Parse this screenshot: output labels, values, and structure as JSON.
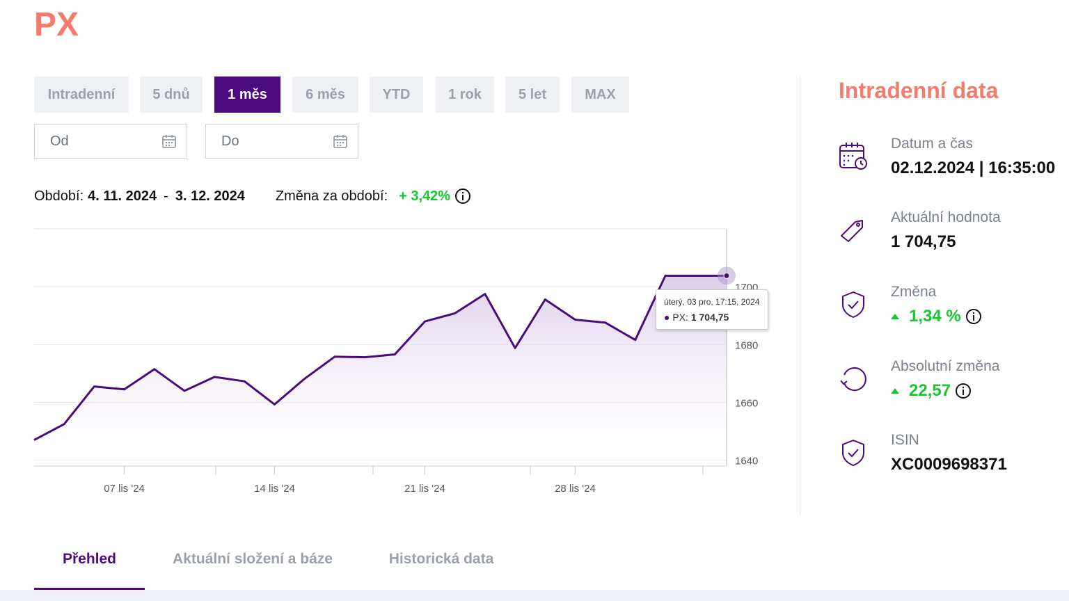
{
  "title": "PX",
  "periods": [
    {
      "label": "Intradenní",
      "active": false
    },
    {
      "label": "5 dnů",
      "active": false
    },
    {
      "label": "1 měs",
      "active": true
    },
    {
      "label": "6 měs",
      "active": false
    },
    {
      "label": "YTD",
      "active": false
    },
    {
      "label": "1 rok",
      "active": false
    },
    {
      "label": "5 let",
      "active": false
    },
    {
      "label": "MAX",
      "active": false
    }
  ],
  "date_from": {
    "placeholder": "Od"
  },
  "date_to": {
    "placeholder": "Do"
  },
  "period_info": {
    "label": "Období:",
    "start": "4. 11. 2024",
    "separator": "-",
    "end": "3. 12. 2024",
    "change_label": "Změna za období:",
    "change_value": "+ 3,42%"
  },
  "tooltip": {
    "date": "úterý, 03 pro, 17:15, 2024",
    "series": "PX:",
    "value": "1 704,75"
  },
  "chart_data": {
    "type": "area",
    "x": [
      "04 lis '24",
      "05 lis '24",
      "06 lis '24",
      "07 lis '24",
      "08 lis '24",
      "11 lis '24",
      "12 lis '24",
      "13 lis '24",
      "14 lis '24",
      "15 lis '24",
      "18 lis '24",
      "19 lis '24",
      "20 lis '24",
      "21 lis '24",
      "22 lis '24",
      "25 lis '24",
      "26 lis '24",
      "27 lis '24",
      "28 lis '24",
      "29 lis '24",
      "02 pro '24",
      "03 pro '24",
      "03 pro '24"
    ],
    "y": [
      1647,
      1652.5,
      1665.5,
      1664.5,
      1671.5,
      1664,
      1668.8,
      1667.3,
      1659.3,
      1668.2,
      1675.8,
      1675.6,
      1676.6,
      1688,
      1690.8,
      1697.5,
      1678.8,
      1695.6,
      1688.6,
      1687.6,
      1681.6,
      1703.8,
      1703.8
    ],
    "series": [
      {
        "name": "PX"
      }
    ],
    "xticks": [
      "07 lis '24",
      "14 lis '24",
      "21 lis '24",
      "28 lis '24"
    ],
    "yticks": [
      1640,
      1660,
      1680,
      1700
    ],
    "ylim": [
      1638,
      1720
    ],
    "line_color": "#4b0a7f",
    "fill_color": "#e6dcef",
    "grid": true
  },
  "side": {
    "title": "Intradenní data",
    "stats": [
      {
        "icon": "calendar-clock-icon",
        "label": "Datum a čas",
        "value": "02.12.2024 | 16:35:00"
      },
      {
        "icon": "tag-icon",
        "label": "Aktuální hodnota",
        "value": "1 704,75"
      },
      {
        "icon": "shield-check-icon",
        "label": "Změna",
        "value": "1,34 %"
      },
      {
        "icon": "refresh-icon",
        "label": "Absolutní změna",
        "value": "22,57"
      },
      {
        "icon": "shield-check-icon",
        "label": "ISIN",
        "value": "XC0009698371"
      }
    ]
  },
  "tabs": [
    {
      "label": "Přehled",
      "active": true
    },
    {
      "label": "Aktuální složení a báze",
      "active": false
    },
    {
      "label": "Historická data",
      "active": false
    }
  ],
  "colors": {
    "accent": "#4b0a7f",
    "brand": "#f47c6c",
    "positive": "#18c72e"
  }
}
